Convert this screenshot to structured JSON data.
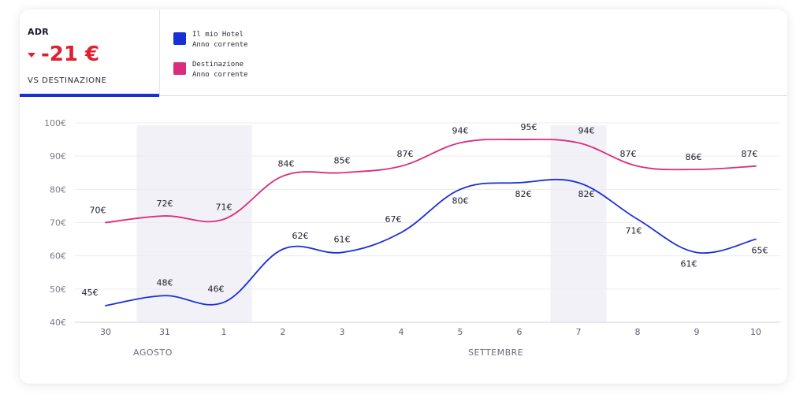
{
  "kpi": {
    "label": "ADR",
    "value": "-21 €",
    "subtitle": "VS DESTINAZIONE",
    "trend": "down"
  },
  "legend": [
    {
      "line1": "Il mio Hotel",
      "line2": "Anno corrente",
      "color": "#1a2fd6"
    },
    {
      "line1": "Destinazione",
      "line2": "Anno corrente",
      "color": "#d92e7c"
    }
  ],
  "colors": {
    "hotel": "#1a2fd6",
    "destination": "#d92e7c",
    "negative": "#e0202e",
    "weekend_band": "#f2f1f7"
  },
  "chart_data": {
    "type": "line",
    "categories": [
      "30",
      "31",
      "1",
      "2",
      "3",
      "4",
      "5",
      "6",
      "7",
      "8",
      "9",
      "10"
    ],
    "month_labels": [
      {
        "label": "AGOSTO",
        "category": "31"
      },
      {
        "label": "SETTEMBRE",
        "category": "6"
      }
    ],
    "y_ticks": [
      "100€",
      "90€",
      "80€",
      "70€",
      "60€",
      "50€",
      "40€"
    ],
    "ylim": [
      40,
      100
    ],
    "grid": true,
    "highlight_ranges": [
      [
        "31",
        "2"
      ],
      [
        "7",
        "8"
      ]
    ],
    "series": [
      {
        "name": "Il mio Hotel",
        "values": [
          45,
          48,
          46,
          62,
          61,
          67,
          80,
          82,
          82,
          71,
          61,
          65
        ],
        "labels": [
          "45€",
          "48€",
          "46€",
          "62€",
          "61€",
          "67€",
          "80€",
          "82€",
          "82€",
          "71€",
          "61€",
          "65€"
        ]
      },
      {
        "name": "Destinazione",
        "values": [
          70,
          72,
          71,
          84,
          85,
          87,
          94,
          95,
          94,
          87,
          86,
          87
        ],
        "labels": [
          "70€",
          "72€",
          "71€",
          "84€",
          "85€",
          "87€",
          "94€",
          "95€",
          "94€",
          "87€",
          "86€",
          "87€"
        ]
      }
    ]
  }
}
